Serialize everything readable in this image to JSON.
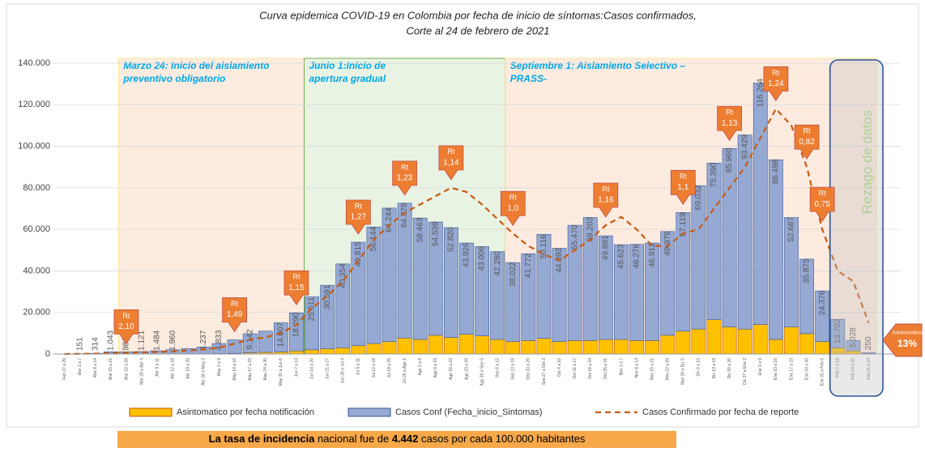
{
  "chart_data": {
    "type": "stacked_bar_line",
    "title": [
      "Curva epidemica COVID-19 en Colombia  por fecha de inicio de síntomas:Casos confirmados,",
      "Corte al 24 de febrero de 2021"
    ],
    "categories": [
      "Feb 27 a 29",
      "Mar 1 a 7",
      "Mar 8 a 14",
      "Mar 15 a 21",
      "Mar 22 a 28",
      "Mar 29 a Abr 4",
      "Abr 5 a 11",
      "Abr 12 a 18",
      "Abr 19 a 25",
      "Abr 26 a May 2",
      "May 3 a 9",
      "May 10 a 16",
      "May 17 a 23",
      "May 24 a 30",
      "May 31 a Jun 6",
      "Jun 7 a 13",
      "Jun 14 a 20",
      "Jun 21 a 27",
      "Jun 28 a Jul 4",
      "Jul 5 a 11",
      "Jul 12 a 18",
      "Jul 19 a 25",
      "Jul 26 a Ago 1",
      "Ago 2 a 8",
      "Ago 9 a 15",
      "Ago 16 a 22",
      "Ago 23 a 29",
      "Ago 30 a Sep 5",
      "Sep 6 a 12",
      "Sep 13 a 19",
      "Sep 20 a 26",
      "Sep 27 a Oct 3",
      "Oct 4 a 10",
      "Oct 11 a 17",
      "Oct 18 a 24",
      "Oct 25 a 31",
      "Nov 1 a 7",
      "Nov 8 a 14",
      "Nov 15 a 21",
      "Nov 22 a 28",
      "Nov 29 a Dic 5",
      "Dic 6 a 12",
      "Dic 13 a 19",
      "Dic 20 a 26",
      "Dic 27 a Ene 2",
      "Ene 3 a 9",
      "Ene 10 a 16",
      "Ene 17 a 23",
      "Ene 24 a 30",
      "Ene 31 a Feb 6",
      "Feb 7 a 13",
      "Feb 14 a 20",
      "Feb 21 a 24"
    ],
    "series": [
      {
        "name": "Asintomatico  por fecha notificación",
        "kind": "bar",
        "color": "#ffc000",
        "stroke": "#c55a11",
        "values": [
          0,
          0,
          0,
          20,
          30,
          40,
          50,
          60,
          80,
          100,
          200,
          300,
          600,
          800,
          1000,
          1500,
          2000,
          2500,
          3000,
          4000,
          5000,
          6000,
          7700,
          7000,
          9000,
          8000,
          9500,
          8700,
          7000,
          6000,
          6500,
          7500,
          6000,
          6500,
          6500,
          7000,
          7000,
          6500,
          6500,
          9000,
          11000,
          12000,
          16500,
          13000,
          12000,
          14200,
          7000,
          13000,
          9800,
          6000,
          3000,
          1500,
          300
        ]
      },
      {
        "name": "Casos Conf (Fecha_inicio_Sintomas)",
        "kind": "bar",
        "color": "#95a9d3",
        "stroke": "#3b5998",
        "values": [
          10,
          151,
          314,
          1043,
          980,
          1121,
          1484,
          1960,
          2500,
          3237,
          4833,
          6500,
          9142,
          10200,
          14007,
          18290,
          25511,
          30591,
          40354,
          49815,
          56144,
          64244,
          64878,
          58463,
          54539,
          52820,
          43926,
          43006,
          42280,
          38022,
          41772,
          50116,
          44892,
          55470,
          59203,
          49891,
          45623,
          46276,
          46912,
          49979,
          57119,
          69032,
          75390,
          85960,
          93429,
          116264,
          86498,
          52687,
          35875,
          24376,
          13702,
          5028,
          250
        ],
        "value_labels": [
          null,
          "151",
          "314",
          "1.043",
          "980",
          "1.121",
          "1.484",
          "1.960",
          null,
          "3.237",
          "4.833",
          null,
          "9.142",
          null,
          "14.007",
          "18.290",
          "25.511",
          "30.591",
          "40.354",
          "49.815",
          "56.144",
          "64.244",
          "64.878",
          "58.463",
          "54.539",
          "52.820",
          "43.926",
          "43.006",
          "42.280",
          "38.022",
          "41.772",
          "50.116",
          "44.892",
          "55.470",
          "59.203",
          "49.891",
          "45.623",
          "46.276",
          "46.912",
          "49.979",
          "57.119",
          "69.032",
          "75.390",
          "85.960",
          "93.429",
          "116.264",
          "86.498",
          "52.687",
          "35.875",
          "24.376",
          "13.702",
          "5.028",
          "250"
        ]
      },
      {
        "name": "Casos Confirmado por fecha de reporte",
        "kind": "line",
        "color": "#c55a11",
        "values": [
          0,
          100,
          200,
          400,
          600,
          800,
          1000,
          1300,
          1700,
          2200,
          3000,
          5000,
          7000,
          8000,
          10000,
          14000,
          22000,
          28000,
          35000,
          45000,
          55000,
          62000,
          68000,
          72000,
          76000,
          80000,
          78000,
          72000,
          65000,
          58000,
          52000,
          48000,
          45000,
          50000,
          55000,
          62000,
          66000,
          60000,
          52000,
          52000,
          58000,
          60000,
          70000,
          80000,
          90000,
          104000,
          118000,
          110000,
          90000,
          60000,
          40000,
          35000,
          15000
        ]
      }
    ],
    "ylim": [
      0,
      140000
    ],
    "yticks": [
      0,
      {
        "value": 20000,
        "label": "20.000"
      },
      {
        "value": 40000,
        "label": "40.000"
      },
      {
        "value": 60000,
        "label": "60.000"
      },
      {
        "value": 80000,
        "label": "80.000"
      },
      {
        "value": 100000,
        "label": "100.000"
      },
      {
        "value": 120000,
        "label": "120.000"
      },
      {
        "value": 140000,
        "label": "140.000"
      }
    ],
    "periods": [
      {
        "text": [
          "Marzo 24: Inicio del aislamiento",
          "preventivo obligatorio"
        ],
        "from": "Mar 22 a 28",
        "to": "Jun 7 a 13",
        "fill": "#fbe5d6",
        "stroke": "#ffe699"
      },
      {
        "text": [
          "Junio 1:Inicio de",
          "apertura gradual"
        ],
        "from": "Jun 14 a 20",
        "to": "Sep 6 a 12",
        "fill": "#e2efda",
        "stroke": "#70ad47"
      },
      {
        "text": [
          "Septiembre 1: Aislamiento Selectivo –",
          "PRASS-"
        ],
        "from": "Sep 13 a 19",
        "to": "Feb 21 a 24",
        "fill": "#fce4d6",
        "stroke": "#ffe699"
      }
    ],
    "lag_box": {
      "text": "Rezago de datos",
      "from": "Feb 7 a 13",
      "to": "Feb 21 a 24"
    },
    "rt_callouts": [
      {
        "category": "Mar 22 a 28",
        "label": "Rt",
        "value": 2.1,
        "value_label": "2,10"
      },
      {
        "category": "May 10 a 16",
        "label": "Rt",
        "value": 1.49,
        "value_label": "1,49"
      },
      {
        "category": "Jun 7 a 13",
        "label": "Rt",
        "value": 1.15,
        "value_label": "1,15"
      },
      {
        "category": "Jul 5 a 11",
        "label": "Rt",
        "value": 1.27,
        "value_label": "1,27"
      },
      {
        "category": "Jul 26 a Ago 1",
        "label": "Rt",
        "value": 1.23,
        "value_label": "1,23"
      },
      {
        "category": "Ago 16 a 22",
        "label": "Rt",
        "value": 1.14,
        "value_label": "1,14"
      },
      {
        "category": "Sep 13 a 19",
        "label": "Rt",
        "value": 1.0,
        "value_label": "1,0"
      },
      {
        "category": "Oct 25 a 31",
        "label": "Rt",
        "value": 1.16,
        "value_label": "1,16"
      },
      {
        "category": "Nov 29 a Dic 5",
        "label": "Rt",
        "value": 1.1,
        "value_label": "1,1"
      },
      {
        "category": "Dic 20 a 26",
        "label": "Rt",
        "value": 1.13,
        "value_label": "1,13"
      },
      {
        "category": "Ene 10 a 16",
        "label": "Rt",
        "value": 1.24,
        "value_label": "1,24"
      },
      {
        "category": "Ene 24 a 30",
        "label": "Rt",
        "value": 0.82,
        "value_label": "0,82"
      },
      {
        "category": "Ene 31 a Feb 6",
        "label": "Rt",
        "value": 0.75,
        "value_label": "0,75"
      }
    ],
    "asymptomatic_share": {
      "label": "Asintomatico",
      "value": 13,
      "value_label": "13%"
    },
    "footer": [
      "La tasa de incidencia",
      " nacional fue de ",
      "4.442",
      " casos por cada 100.000 habitantes"
    ]
  }
}
